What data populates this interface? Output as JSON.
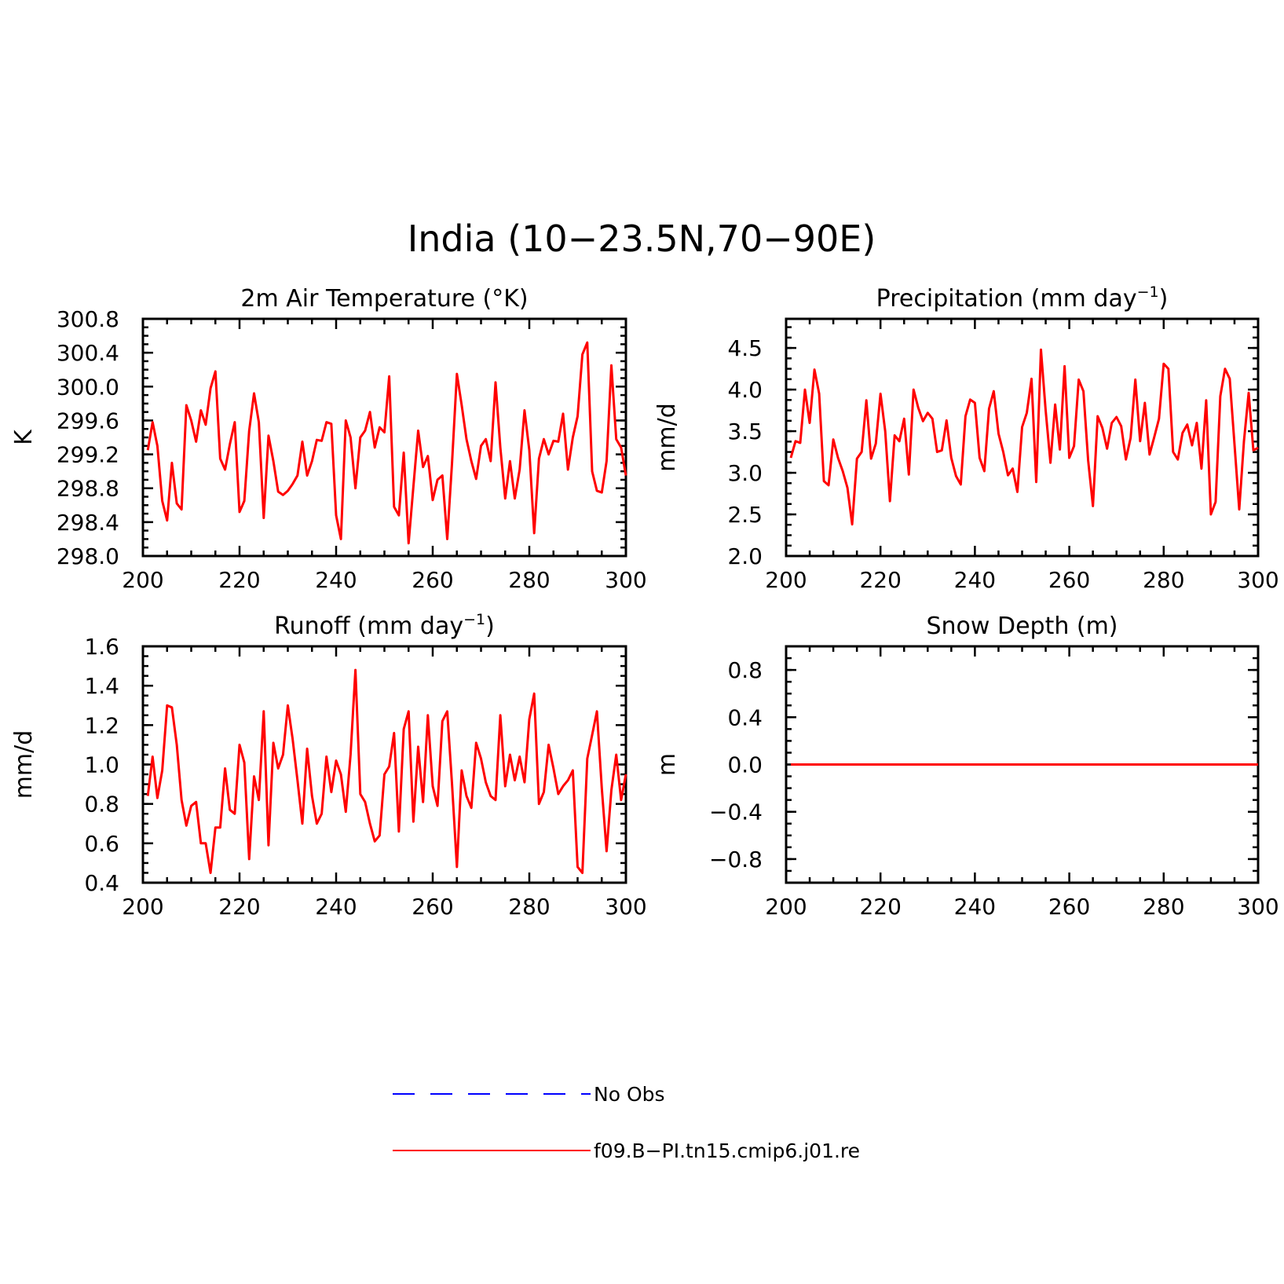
{
  "main_title": "India (10−23.5N,70−90E)",
  "colors": {
    "model": "#ff0000",
    "obs": "#0000ff",
    "axes": "#000000"
  },
  "legend": [
    {
      "label": "No Obs",
      "color": "#0000ff",
      "style": "dashed"
    },
    {
      "label": "f09.B−PI.tn15.cmip6.j01.re",
      "color": "#ff0000",
      "style": "solid"
    }
  ],
  "chart_data": [
    {
      "type": "line",
      "title": "2m Air Temperature (°K)",
      "title_parts": [
        "2m Air Temperature (°K)"
      ],
      "ylabel": "K",
      "xlim": [
        200,
        300
      ],
      "ylim": [
        298.0,
        300.8
      ],
      "xticks": [
        "200",
        "220",
        "240",
        "260",
        "280",
        "300"
      ],
      "yticks": [
        "298.0",
        "298.4",
        "298.8",
        "299.2",
        "299.6",
        "300.0",
        "300.4",
        "300.8"
      ],
      "x_start": 201,
      "series": [
        {
          "name": "f09.B−PI.tn15.cmip6.j01.re",
          "values": [
            299.25,
            299.58,
            299.3,
            298.65,
            298.42,
            299.1,
            298.62,
            298.55,
            299.78,
            299.6,
            299.35,
            299.72,
            299.55,
            299.98,
            300.18,
            299.15,
            299.02,
            299.32,
            299.58,
            298.52,
            298.65,
            299.48,
            299.92,
            299.58,
            298.45,
            299.42,
            299.12,
            298.76,
            298.72,
            298.77,
            298.85,
            298.95,
            299.35,
            298.95,
            299.12,
            299.37,
            299.36,
            299.58,
            299.56,
            298.48,
            298.2,
            299.6,
            299.4,
            298.8,
            299.4,
            299.48,
            299.7,
            299.28,
            299.52,
            299.46,
            300.12,
            298.58,
            298.48,
            299.22,
            298.15,
            298.82,
            299.48,
            299.05,
            299.18,
            298.66,
            298.9,
            298.95,
            298.2,
            299.1,
            300.15,
            299.78,
            299.38,
            299.12,
            298.91,
            299.3,
            299.38,
            299.12,
            300.05,
            299.28,
            298.68,
            299.12,
            298.68,
            299.02,
            299.72,
            299.25,
            298.27,
            299.15,
            299.38,
            299.2,
            299.36,
            299.35,
            299.68,
            299.02,
            299.4,
            299.65,
            300.38,
            300.52,
            299.0,
            298.77,
            298.75,
            299.12,
            300.25,
            299.38,
            299.28,
            298.95
          ]
        }
      ]
    },
    {
      "type": "line",
      "title": "Precipitation (mm day⁻¹)",
      "title_parts": [
        "Precipitation (mm day",
        "−1",
        ")"
      ],
      "ylabel": "mm/d",
      "xlim": [
        200,
        300
      ],
      "ylim": [
        2.0,
        4.85
      ],
      "xticks": [
        "200",
        "220",
        "240",
        "260",
        "280",
        "300"
      ],
      "yticks": [
        "2.0",
        "2.5",
        "3.0",
        "3.5",
        "4.0",
        "4.5"
      ],
      "x_start": 201,
      "series": [
        {
          "name": "f09.B−PI.tn15.cmip6.j01.re",
          "values": [
            3.18,
            3.38,
            3.36,
            4.0,
            3.6,
            4.24,
            3.95,
            2.9,
            2.85,
            3.4,
            3.18,
            3.02,
            2.82,
            2.38,
            3.17,
            3.25,
            3.87,
            3.17,
            3.35,
            3.95,
            3.5,
            2.66,
            3.45,
            3.38,
            3.65,
            2.98,
            4.0,
            3.78,
            3.62,
            3.72,
            3.65,
            3.25,
            3.27,
            3.63,
            3.18,
            2.96,
            2.86,
            3.68,
            3.88,
            3.84,
            3.18,
            3.02,
            3.77,
            3.98,
            3.47,
            3.25,
            2.97,
            3.05,
            2.77,
            3.55,
            3.72,
            4.13,
            2.89,
            4.48,
            3.75,
            3.12,
            3.82,
            3.28,
            4.28,
            3.18,
            3.32,
            4.12,
            3.98,
            3.15,
            2.6,
            3.68,
            3.54,
            3.29,
            3.6,
            3.67,
            3.56,
            3.16,
            3.42,
            4.12,
            3.38,
            3.84,
            3.22,
            3.43,
            3.65,
            4.31,
            4.25,
            3.25,
            3.16,
            3.48,
            3.58,
            3.33,
            3.6,
            3.05,
            3.87,
            2.5,
            2.65,
            3.92,
            4.25,
            4.13,
            3.35,
            2.56,
            3.38,
            3.96,
            3.27,
            3.3
          ]
        }
      ]
    },
    {
      "type": "line",
      "title": "Runoff (mm day⁻¹)",
      "title_parts": [
        "Runoff (mm day",
        "−1",
        ")"
      ],
      "ylabel": "mm/d",
      "xlim": [
        200,
        300
      ],
      "ylim": [
        0.4,
        1.6
      ],
      "xticks": [
        "200",
        "220",
        "240",
        "260",
        "280",
        "300"
      ],
      "yticks": [
        "0.4",
        "0.6",
        "0.8",
        "1.0",
        "1.2",
        "1.4",
        "1.6"
      ],
      "x_start": 201,
      "series": [
        {
          "name": "f09.B−PI.tn15.cmip6.j01.re",
          "values": [
            0.84,
            1.04,
            0.83,
            0.97,
            1.3,
            1.29,
            1.1,
            0.82,
            0.69,
            0.79,
            0.81,
            0.6,
            0.6,
            0.45,
            0.68,
            0.68,
            0.98,
            0.77,
            0.75,
            1.1,
            1.01,
            0.52,
            0.94,
            0.82,
            1.27,
            0.59,
            1.11,
            0.98,
            1.05,
            1.3,
            1.13,
            0.92,
            0.7,
            1.08,
            0.84,
            0.7,
            0.75,
            1.04,
            0.86,
            1.02,
            0.95,
            0.76,
            1.05,
            1.48,
            0.85,
            0.81,
            0.7,
            0.61,
            0.64,
            0.95,
            0.99,
            1.16,
            0.66,
            1.18,
            1.27,
            0.71,
            1.09,
            0.81,
            1.25,
            0.89,
            0.79,
            1.22,
            1.27,
            0.9,
            0.48,
            0.97,
            0.84,
            0.78,
            1.11,
            1.03,
            0.91,
            0.84,
            0.82,
            1.25,
            0.89,
            1.05,
            0.92,
            1.04,
            0.91,
            1.23,
            1.36,
            0.8,
            0.86,
            1.1,
            0.98,
            0.85,
            0.89,
            0.92,
            0.97,
            0.48,
            0.45,
            1.03,
            1.15,
            1.27,
            0.88,
            0.56,
            0.87,
            1.05,
            0.82,
            0.95
          ]
        }
      ]
    },
    {
      "type": "line",
      "title": "Snow Depth (m)",
      "title_parts": [
        "Snow Depth (m)"
      ],
      "ylabel": "m",
      "xlim": [
        200,
        300
      ],
      "ylim": [
        -1.0,
        1.0
      ],
      "xticks": [
        "200",
        "220",
        "240",
        "260",
        "280",
        "300"
      ],
      "yticks": [
        "−0.8",
        "−0.4",
        "0.0",
        "0.4",
        "0.8"
      ],
      "x_start": 201,
      "series": [
        {
          "name": "f09.B−PI.tn15.cmip6.j01.re",
          "values": [
            0,
            0,
            0,
            0,
            0,
            0,
            0,
            0,
            0,
            0,
            0,
            0,
            0,
            0,
            0,
            0,
            0,
            0,
            0,
            0,
            0,
            0,
            0,
            0,
            0,
            0,
            0,
            0,
            0,
            0,
            0,
            0,
            0,
            0,
            0,
            0,
            0,
            0,
            0,
            0,
            0,
            0,
            0,
            0,
            0,
            0,
            0,
            0,
            0,
            0,
            0,
            0,
            0,
            0,
            0,
            0,
            0,
            0,
            0,
            0,
            0,
            0,
            0,
            0,
            0,
            0,
            0,
            0,
            0,
            0,
            0,
            0,
            0,
            0,
            0,
            0,
            0,
            0,
            0,
            0,
            0,
            0,
            0,
            0,
            0,
            0,
            0,
            0,
            0,
            0,
            0,
            0,
            0,
            0,
            0,
            0,
            0,
            0,
            0,
            0
          ]
        }
      ]
    }
  ]
}
